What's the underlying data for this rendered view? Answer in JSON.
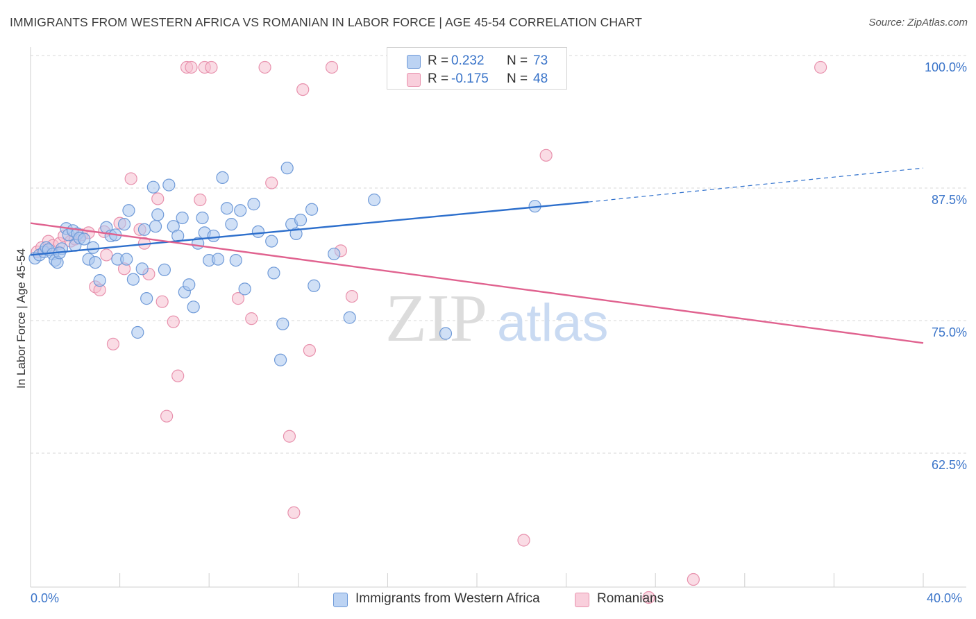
{
  "header": {
    "title": "IMMIGRANTS FROM WESTERN AFRICA VS ROMANIAN IN LABOR FORCE | AGE 45-54 CORRELATION CHART",
    "source": "Source: ZipAtlas.com"
  },
  "watermark": {
    "zip": "ZIP",
    "atlas": "atlas"
  },
  "legend_top": {
    "rows": [
      {
        "r_label": "R =",
        "r_value": "0.232",
        "n_label": "N =",
        "n_value": "73"
      },
      {
        "r_label": "R =",
        "r_value": "-0.175",
        "n_label": "N =",
        "n_value": "48"
      }
    ]
  },
  "legend_bottom": {
    "items": [
      {
        "label": "Immigrants from Western Africa"
      },
      {
        "label": "Romanians"
      }
    ]
  },
  "colors": {
    "blue_fill": "#a9c6ee",
    "blue_stroke": "#6f9ad8",
    "blue_line": "#2d6fcc",
    "pink_fill": "#f6bfd0",
    "pink_stroke": "#e891ad",
    "pink_line": "#e0628f",
    "tick_text": "#3a74c9",
    "grid": "#d7d7d7"
  },
  "chart_data": {
    "type": "scatter",
    "xlabel": "",
    "ylabel": "In Labor Force | Age 45-54",
    "xlim": [
      0,
      40
    ],
    "ylim": [
      49.5,
      100.5
    ],
    "x_tick_labels": {
      "min": "0.0%",
      "max": "40.0%"
    },
    "y_ticks": [
      {
        "value": 100,
        "label": "100.0%"
      },
      {
        "value": 87.5,
        "label": "87.5%"
      },
      {
        "value": 75,
        "label": "75.0%"
      },
      {
        "value": 62.5,
        "label": "62.5%"
      }
    ],
    "grid": "horizontal dashed",
    "series": [
      {
        "name": "Immigrants from Western Africa",
        "color": "blue",
        "trend": {
          "x0": 0,
          "y0": 82.3,
          "x1": 25,
          "y1": 87.3,
          "dash_to_x": 40,
          "dash_to_y": 90.5
        },
        "points": [
          [
            0.2,
            82.0
          ],
          [
            0.4,
            82.3
          ],
          [
            0.6,
            82.6
          ],
          [
            0.7,
            83.0
          ],
          [
            0.8,
            82.8
          ],
          [
            1.0,
            82.4
          ],
          [
            1.1,
            81.8
          ],
          [
            1.2,
            81.6
          ],
          [
            1.4,
            82.9
          ],
          [
            1.6,
            84.8
          ],
          [
            1.7,
            84.2
          ],
          [
            1.9,
            84.6
          ],
          [
            2.0,
            83.2
          ],
          [
            2.1,
            84.3
          ],
          [
            2.2,
            83.9
          ],
          [
            2.4,
            83.8
          ],
          [
            2.6,
            81.9
          ],
          [
            2.8,
            83.0
          ],
          [
            2.9,
            81.6
          ],
          [
            3.1,
            79.9
          ],
          [
            3.4,
            84.9
          ],
          [
            3.6,
            84.1
          ],
          [
            3.8,
            84.2
          ],
          [
            3.9,
            81.9
          ],
          [
            4.2,
            85.2
          ],
          [
            4.3,
            81.9
          ],
          [
            4.4,
            86.5
          ],
          [
            4.6,
            80.0
          ],
          [
            4.8,
            75.0
          ],
          [
            5.0,
            81.0
          ],
          [
            5.1,
            84.7
          ],
          [
            5.2,
            78.2
          ],
          [
            5.5,
            88.7
          ],
          [
            5.6,
            85.0
          ],
          [
            5.7,
            86.1
          ],
          [
            6.0,
            80.9
          ],
          [
            6.2,
            88.9
          ],
          [
            6.4,
            85.0
          ],
          [
            6.6,
            84.1
          ],
          [
            6.8,
            85.8
          ],
          [
            6.9,
            78.8
          ],
          [
            7.1,
            79.5
          ],
          [
            7.3,
            77.4
          ],
          [
            7.5,
            83.4
          ],
          [
            7.7,
            85.8
          ],
          [
            7.8,
            84.4
          ],
          [
            8.0,
            81.8
          ],
          [
            8.2,
            84.1
          ],
          [
            8.4,
            81.9
          ],
          [
            8.6,
            89.6
          ],
          [
            8.8,
            86.7
          ],
          [
            9.0,
            85.2
          ],
          [
            9.2,
            81.8
          ],
          [
            9.4,
            86.5
          ],
          [
            9.6,
            79.1
          ],
          [
            10.0,
            87.1
          ],
          [
            10.2,
            84.5
          ],
          [
            10.8,
            83.6
          ],
          [
            10.9,
            80.6
          ],
          [
            11.3,
            75.8
          ],
          [
            11.5,
            90.5
          ],
          [
            11.7,
            85.2
          ],
          [
            11.9,
            84.3
          ],
          [
            12.1,
            85.6
          ],
          [
            12.6,
            86.6
          ],
          [
            12.7,
            79.4
          ],
          [
            13.6,
            82.4
          ],
          [
            14.3,
            76.4
          ],
          [
            15.4,
            87.5
          ],
          [
            11.2,
            72.4
          ],
          [
            18.6,
            74.9
          ],
          [
            22.6,
            86.9
          ],
          [
            1.3,
            82.5
          ]
        ]
      },
      {
        "name": "Romanians",
        "color": "pink",
        "trend": {
          "x0": 0,
          "y0": 85.3,
          "x1": 40,
          "y1": 74.0
        },
        "points": [
          [
            0.3,
            82.6
          ],
          [
            0.5,
            83.0
          ],
          [
            0.8,
            83.6
          ],
          [
            1.0,
            83.2
          ],
          [
            1.3,
            83.4
          ],
          [
            1.5,
            84.1
          ],
          [
            1.8,
            83.6
          ],
          [
            2.0,
            83.8
          ],
          [
            2.3,
            84.2
          ],
          [
            2.6,
            84.4
          ],
          [
            2.9,
            79.3
          ],
          [
            3.1,
            79.0
          ],
          [
            3.4,
            82.3
          ],
          [
            3.7,
            73.9
          ],
          [
            4.0,
            85.3
          ],
          [
            4.2,
            81.0
          ],
          [
            4.5,
            89.5
          ],
          [
            4.9,
            84.7
          ],
          [
            5.1,
            83.4
          ],
          [
            5.3,
            80.5
          ],
          [
            5.7,
            87.6
          ],
          [
            5.9,
            77.9
          ],
          [
            6.1,
            67.1
          ],
          [
            6.4,
            76.0
          ],
          [
            6.6,
            70.9
          ],
          [
            7.0,
            100.0
          ],
          [
            7.2,
            100.0
          ],
          [
            7.6,
            87.5
          ],
          [
            7.8,
            100.0
          ],
          [
            8.1,
            100.0
          ],
          [
            9.3,
            78.2
          ],
          [
            9.9,
            76.3
          ],
          [
            10.5,
            100.0
          ],
          [
            10.8,
            89.1
          ],
          [
            11.6,
            65.2
          ],
          [
            11.8,
            58.0
          ],
          [
            12.2,
            97.9
          ],
          [
            12.5,
            73.3
          ],
          [
            13.5,
            100.0
          ],
          [
            13.9,
            82.7
          ],
          [
            14.4,
            78.4
          ],
          [
            16.4,
            100.0
          ],
          [
            22.1,
            55.4
          ],
          [
            23.1,
            91.7
          ],
          [
            27.7,
            50.0
          ],
          [
            29.7,
            51.7
          ],
          [
            35.4,
            100.0
          ],
          [
            3.3,
            84.5
          ]
        ]
      }
    ]
  }
}
